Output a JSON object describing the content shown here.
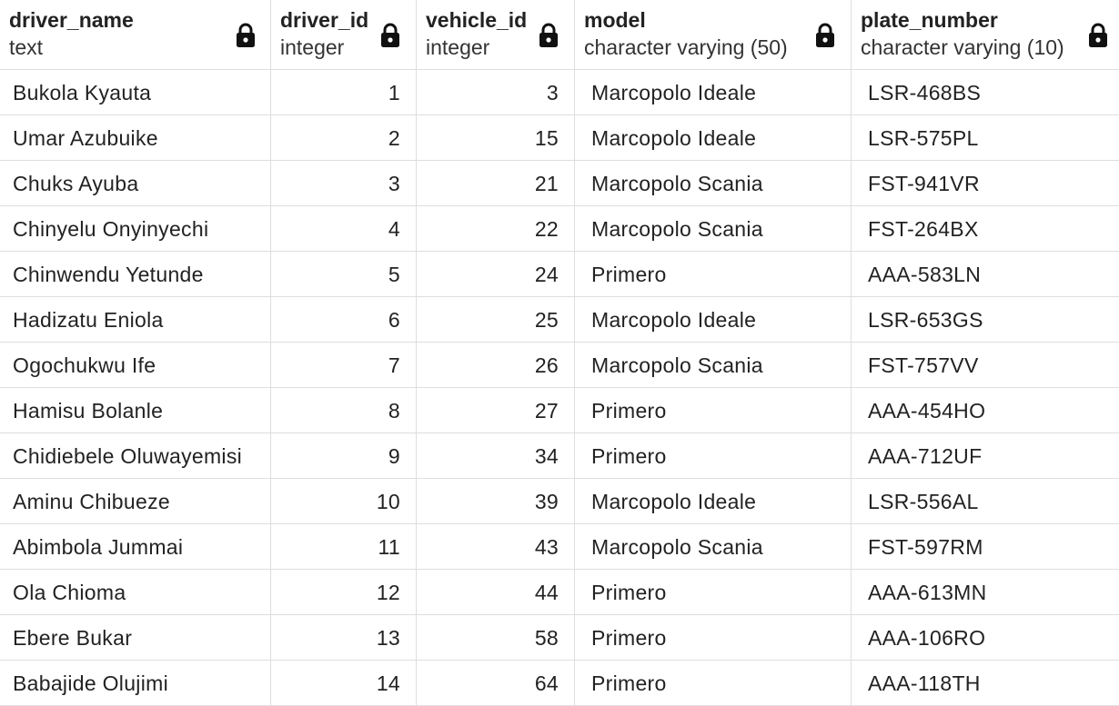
{
  "columns": [
    {
      "name": "driver_name",
      "type": "text"
    },
    {
      "name": "driver_id",
      "type": "integer"
    },
    {
      "name": "vehicle_id",
      "type": "integer"
    },
    {
      "name": "model",
      "type": "character varying (50)"
    },
    {
      "name": "plate_number",
      "type": "character varying (10)"
    }
  ],
  "rows": [
    {
      "driver_name": "Bukola Kyauta",
      "driver_id": "1",
      "vehicle_id": "3",
      "model": "Marcopolo Ideale",
      "plate_number": "LSR-468BS"
    },
    {
      "driver_name": "Umar Azubuike",
      "driver_id": "2",
      "vehicle_id": "15",
      "model": "Marcopolo Ideale",
      "plate_number": "LSR-575PL"
    },
    {
      "driver_name": "Chuks Ayuba",
      "driver_id": "3",
      "vehicle_id": "21",
      "model": "Marcopolo Scania",
      "plate_number": "FST-941VR"
    },
    {
      "driver_name": "Chinyelu Onyinyechi",
      "driver_id": "4",
      "vehicle_id": "22",
      "model": "Marcopolo Scania",
      "plate_number": "FST-264BX"
    },
    {
      "driver_name": "Chinwendu Yetunde",
      "driver_id": "5",
      "vehicle_id": "24",
      "model": "Primero",
      "plate_number": "AAA-583LN"
    },
    {
      "driver_name": "Hadizatu Eniola",
      "driver_id": "6",
      "vehicle_id": "25",
      "model": "Marcopolo Ideale",
      "plate_number": "LSR-653GS"
    },
    {
      "driver_name": "Ogochukwu Ife",
      "driver_id": "7",
      "vehicle_id": "26",
      "model": "Marcopolo Scania",
      "plate_number": "FST-757VV"
    },
    {
      "driver_name": "Hamisu Bolanle",
      "driver_id": "8",
      "vehicle_id": "27",
      "model": "Primero",
      "plate_number": "AAA-454HO"
    },
    {
      "driver_name": "Chidiebele Oluwayemisi",
      "driver_id": "9",
      "vehicle_id": "34",
      "model": "Primero",
      "plate_number": "AAA-712UF"
    },
    {
      "driver_name": "Aminu Chibueze",
      "driver_id": "10",
      "vehicle_id": "39",
      "model": "Marcopolo Ideale",
      "plate_number": "LSR-556AL"
    },
    {
      "driver_name": "Abimbola Jummai",
      "driver_id": "11",
      "vehicle_id": "43",
      "model": "Marcopolo Scania",
      "plate_number": "FST-597RM"
    },
    {
      "driver_name": "Ola Chioma",
      "driver_id": "12",
      "vehicle_id": "44",
      "model": "Primero",
      "plate_number": "AAA-613MN"
    },
    {
      "driver_name": "Ebere Bukar",
      "driver_id": "13",
      "vehicle_id": "58",
      "model": "Primero",
      "plate_number": "AAA-106RO"
    },
    {
      "driver_name": "Babajide Olujimi",
      "driver_id": "14",
      "vehicle_id": "64",
      "model": "Primero",
      "plate_number": "AAA-118TH"
    }
  ]
}
